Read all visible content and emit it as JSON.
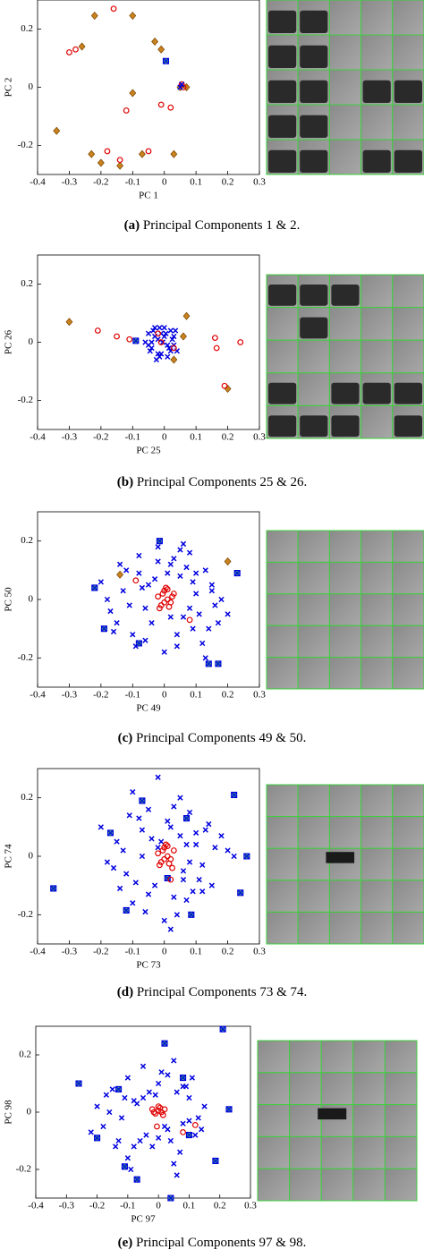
{
  "chart_data": [
    {
      "type": "scatter",
      "xlabel": "PC 1",
      "ylabel": "PC 2",
      "caption_label": "(a)",
      "caption_text": "Principal Components 1 & 2.",
      "xlim": [
        -0.4,
        0.3
      ],
      "ylim": [
        -0.3,
        0.3
      ],
      "xticks": [
        -0.4,
        -0.3,
        -0.2,
        -0.1,
        0,
        0.1,
        0.2,
        0.3
      ],
      "yticks": [
        -0.2,
        0,
        0.2
      ],
      "series": [
        {
          "marker": "diamond",
          "color": "#c8821e",
          "x": [
            -0.22,
            -0.1,
            -0.26,
            -0.03,
            -0.01,
            -0.1,
            -0.34,
            -0.23,
            -0.2,
            -0.14,
            -0.07,
            0.03,
            0.07,
            0.05
          ],
          "values": [
            0.246,
            0.246,
            0.14,
            0.157,
            0.13,
            -0.02,
            -0.15,
            -0.23,
            -0.26,
            -0.27,
            -0.23,
            -0.23,
            0,
            0
          ]
        },
        {
          "marker": "circle",
          "color": "#e00000",
          "x": [
            -0.16,
            -0.3,
            -0.28,
            -0.12,
            -0.01,
            0.02,
            -0.14,
            -0.18,
            -0.05,
            0.06,
            0.055
          ],
          "values": [
            0.27,
            0.12,
            0.13,
            -0.08,
            -0.06,
            -0.07,
            -0.25,
            -0.22,
            -0.22,
            0,
            0.01
          ]
        },
        {
          "marker": "x",
          "color": "#0000e0",
          "x": [
            0.05,
            0.055
          ],
          "values": [
            0,
            0.01
          ]
        },
        {
          "marker": "square-x",
          "color": "#3a9a8a",
          "x": [
            0.005
          ],
          "values": [
            0.09
          ]
        }
      ]
    },
    {
      "type": "scatter",
      "xlabel": "PC 25",
      "ylabel": "PC 26",
      "caption_label": "(b)",
      "caption_text": "Principal Components 25 & 26.",
      "xlim": [
        -0.4,
        0.3
      ],
      "ylim": [
        -0.3,
        0.3
      ],
      "xticks": [
        -0.4,
        -0.3,
        -0.2,
        -0.1,
        0,
        0.1,
        0.2,
        0.3
      ],
      "yticks": [
        -0.2,
        0,
        0.2
      ],
      "series": [
        {
          "marker": "x",
          "color": "#0000e0",
          "x": [
            -0.05,
            -0.04,
            -0.03,
            -0.02,
            -0.01,
            0,
            0.01,
            0.02,
            0.03,
            -0.045,
            -0.035,
            -0.025,
            -0.015,
            -0.005,
            0.005,
            0.015,
            0.025,
            -0.04,
            -0.02,
            0,
            0.02,
            -0.03,
            -0.01,
            0.01,
            0.03,
            -0.05,
            -0.06,
            0.04,
            0.035,
            -0.015
          ],
          "values": [
            0.03,
            -0.02,
            0.05,
            0.01,
            -0.04,
            0.02,
            -0.05,
            0.04,
            -0.01,
            -0.03,
            0.04,
            -0.06,
            0.05,
            0,
            0.03,
            -0.02,
            0.01,
            0,
            -0.04,
            0.05,
            -0.03,
            0.02,
            0.03,
            -0.01,
            0.02,
            -0.01,
            0,
            -0.03,
            0.04,
            -0.05
          ]
        },
        {
          "marker": "diamond",
          "color": "#c8821e",
          "x": [
            -0.3,
            0.07,
            0.03,
            0.2,
            0.06
          ],
          "values": [
            0.07,
            0.09,
            -0.06,
            -0.16,
            0.02
          ]
        },
        {
          "marker": "circle",
          "color": "#e00000",
          "x": [
            -0.21,
            -0.15,
            -0.11,
            0.16,
            0.165,
            0.24,
            0.19,
            -0.02,
            -0.01,
            0.03
          ],
          "values": [
            0.04,
            0.02,
            0.01,
            0.015,
            -0.02,
            0,
            -0.15,
            0.03,
            0,
            -0.02
          ]
        },
        {
          "marker": "square-x",
          "color": "#3a9a8a",
          "x": [
            -0.09
          ],
          "values": [
            0.005
          ]
        }
      ]
    },
    {
      "type": "scatter",
      "xlabel": "PC 49",
      "ylabel": "PC 50",
      "caption_label": "(c)",
      "caption_text": "Principal Components 49 & 50.",
      "xlim": [
        -0.4,
        0.3
      ],
      "ylim": [
        -0.3,
        0.3
      ],
      "xticks": [
        -0.4,
        -0.3,
        -0.2,
        -0.1,
        0,
        0.1,
        0.2,
        0.3
      ],
      "yticks": [
        -0.2,
        0,
        0.2
      ],
      "series": [
        {
          "marker": "x",
          "color": "#0000e0",
          "x": [
            -0.18,
            -0.12,
            -0.08,
            -0.05,
            -0.02,
            0.02,
            0.05,
            0.08,
            0.1,
            0.13,
            0.16,
            0.2,
            -0.2,
            -0.15,
            -0.1,
            -0.06,
            -0.03,
            0.03,
            0.06,
            0.09,
            0.12,
            0.15,
            0.18,
            -0.17,
            -0.13,
            -0.09,
            -0.04,
            0.01,
            0.04,
            0.07,
            0.11,
            0.14,
            -0.14,
            -0.11,
            -0.07,
            0,
            0.05,
            0.09,
            0.13,
            0.17,
            -0.06,
            0.08,
            -0.02,
            0.1,
            0.02,
            -0.16,
            0.06,
            -0.08,
            0.15,
            0.04
          ],
          "values": [
            0,
            0.1,
            0.15,
            0.05,
            0.18,
            0.12,
            0.08,
            0.16,
            0.02,
            0.1,
            -0.02,
            -0.05,
            0.06,
            -0.08,
            -0.12,
            -0.03,
            0.07,
            0.14,
            -0.06,
            -0.1,
            -0.15,
            0.05,
            0,
            -0.04,
            0.03,
            -0.16,
            -0.08,
            0.09,
            -0.12,
            0.11,
            -0.05,
            -0.1,
            0.12,
            -0.02,
            0.04,
            -0.18,
            0.17,
            0.06,
            -0.2,
            -0.08,
            -0.14,
            -0.03,
            0.13,
            0.09,
            -0.06,
            -0.11,
            0.19,
            0.09,
            0.03,
            -0.16
          ]
        },
        {
          "marker": "square-x",
          "color": "#3a9a8a",
          "x": [
            -0.22,
            -0.015,
            0.23,
            -0.19,
            -0.08,
            0.17,
            0.14
          ],
          "values": [
            0.04,
            0.2,
            0.09,
            -0.1,
            -0.15,
            -0.22,
            -0.22
          ]
        },
        {
          "marker": "diamond",
          "color": "#c8821e",
          "x": [
            -0.14,
            0.2
          ],
          "values": [
            0.085,
            0.13
          ]
        },
        {
          "marker": "circle",
          "color": "#e00000",
          "x": [
            -0.09,
            0.08,
            -0.02,
            -0.01,
            0,
            0.01,
            0.02,
            0.03,
            -0.015,
            0.005,
            0.015,
            0.025,
            -0.005,
            0.01,
            0
          ],
          "values": [
            0.065,
            -0.07,
            0.01,
            -0.02,
            0.03,
            0,
            -0.01,
            0.02,
            -0.03,
            0.04,
            -0.025,
            0.01,
            0.02,
            0.035,
            -0.01
          ]
        }
      ]
    },
    {
      "type": "scatter",
      "xlabel": "PC 73",
      "ylabel": "PC 74",
      "caption_label": "(d)",
      "caption_text": "Principal Components 73 & 74.",
      "xlim": [
        -0.4,
        0.3
      ],
      "ylim": [
        -0.3,
        0.3
      ],
      "xticks": [
        -0.4,
        -0.3,
        -0.2,
        -0.1,
        0,
        0.1,
        0.2,
        0.3
      ],
      "yticks": [
        -0.2,
        0,
        0.2
      ],
      "series": [
        {
          "marker": "x",
          "color": "#0000e0",
          "x": [
            -0.2,
            -0.15,
            -0.1,
            -0.08,
            -0.05,
            -0.02,
            0.02,
            0.05,
            0.08,
            0.1,
            0.13,
            0.16,
            0.2,
            0.22,
            -0.18,
            -0.12,
            -0.07,
            -0.03,
            0.03,
            0.06,
            0.09,
            0.12,
            0.15,
            -0.1,
            -0.06,
            0,
            0.04,
            0.07,
            0.11,
            -0.13,
            -0.09,
            -0.04,
            0.01,
            0.06,
            0.1,
            0.14,
            -0.11,
            -0.05,
            0.03,
            0.08,
            -0.02,
            0.12,
            -0.16,
            0.18,
            0.05,
            -0.07,
            0.02,
            -0.01,
            0.07,
            -0.14
          ],
          "values": [
            0.1,
            0.05,
            0.22,
            0.13,
            0.16,
            0.27,
            0.1,
            0.07,
            0.15,
            0.04,
            0.09,
            0.03,
            0.02,
            0,
            -0.02,
            -0.06,
            0,
            -0.1,
            -0.14,
            -0.08,
            -0.12,
            -0.03,
            -0.1,
            -0.16,
            -0.19,
            -0.22,
            -0.2,
            -0.15,
            -0.08,
            0.02,
            -0.09,
            0.06,
            0.12,
            -0.05,
            0.08,
            0.11,
            0.14,
            -0.13,
            0.17,
            -0.02,
            0.03,
            -0.12,
            -0.04,
            0.07,
            0.2,
            0.09,
            -0.25,
            0.05,
            0.04,
            -0.11
          ]
        },
        {
          "marker": "square-x",
          "color": "#3a9a8a",
          "x": [
            -0.07,
            0.07,
            0.22,
            -0.17,
            -0.35,
            0.26,
            0.24,
            0.085,
            -0.12,
            0.01
          ],
          "values": [
            0.19,
            0.13,
            0.21,
            0.08,
            -0.11,
            0,
            -0.125,
            -0.2,
            -0.185,
            -0.075
          ]
        },
        {
          "marker": "circle",
          "color": "#e00000",
          "x": [
            0.02,
            -0.02,
            -0.01,
            0,
            0.01,
            0.02,
            0.03,
            -0.015,
            0.005,
            0.015,
            -0.005,
            0.01,
            0,
            0.025
          ],
          "values": [
            -0.08,
            0.01,
            -0.02,
            0.03,
            0,
            -0.01,
            0.02,
            -0.03,
            0.04,
            -0.025,
            0.02,
            0.035,
            -0.01,
            -0.04
          ]
        }
      ]
    },
    {
      "type": "scatter",
      "xlabel": "PC 97",
      "ylabel": "PC 98",
      "caption_label": "(e)",
      "caption_text": "Principal Components 97 & 98.",
      "xlim": [
        -0.4,
        0.3
      ],
      "ylim": [
        -0.3,
        0.3
      ],
      "xticks": [
        -0.4,
        -0.3,
        -0.2,
        -0.1,
        0,
        0.1,
        0.2,
        0.3
      ],
      "yticks": [
        -0.2,
        0,
        0.2
      ],
      "series": [
        {
          "marker": "x",
          "color": "#0000e0",
          "x": [
            -0.2,
            -0.15,
            -0.1,
            -0.05,
            0,
            0.05,
            0.1,
            0.15,
            -0.18,
            -0.12,
            -0.08,
            -0.03,
            0.03,
            0.08,
            0.12,
            -0.22,
            -0.14,
            -0.06,
            0.02,
            0.07,
            0.13,
            -0.16,
            -0.1,
            -0.04,
            0.04,
            0.09,
            -0.07,
            0.01,
            0.06,
            -0.11,
            -0.02,
            0.11,
            -0.13,
            0.05,
            -0.09,
            0,
            -0.17,
            0.14,
            -0.05,
            0.08,
            0.06,
            -0.01,
            0.1,
            -0.08,
            0.03
          ],
          "values": [
            0.02,
            0.08,
            0.12,
            0.16,
            0.1,
            0.18,
            0.05,
            0.02,
            -0.05,
            -0.02,
            0.04,
            0.07,
            0.13,
            -0.04,
            -0.08,
            -0.07,
            -0.12,
            -0.1,
            -0.05,
            -0.14,
            -0.02,
            0,
            -0.16,
            -0.08,
            -0.1,
            0.09,
            0.03,
            0.14,
            0.07,
            0.05,
            -0.12,
            0.12,
            -0.1,
            -0.18,
            -0.2,
            -0.09,
            0.06,
            -0.06,
            0.05,
            0.09,
            -0.22,
            0.06,
            -0.03,
            -0.12,
            -0.06
          ]
        },
        {
          "marker": "square-x",
          "color": "#3a9a8a",
          "x": [
            -0.26,
            -0.13,
            0.21,
            0.02,
            0.08,
            0.23,
            0.1,
            -0.2,
            -0.11,
            -0.07,
            0.04,
            0.186
          ],
          "values": [
            0.1,
            0.08,
            0.29,
            0.24,
            0.12,
            0.01,
            -0.08,
            -0.09,
            -0.19,
            -0.235,
            -0.3,
            -0.17
          ]
        },
        {
          "marker": "circle",
          "color": "#e00000",
          "x": [
            -0.005,
            0.12,
            0.08,
            -0.02,
            -0.01,
            0,
            0.01,
            0.02,
            -0.015,
            0.005,
            0.015,
            0
          ],
          "values": [
            -0.05,
            -0.045,
            -0.07,
            0.01,
            -0.005,
            0.02,
            0,
            0.01,
            0,
            0.015,
            -0.01,
            0.005
          ]
        }
      ]
    }
  ]
}
